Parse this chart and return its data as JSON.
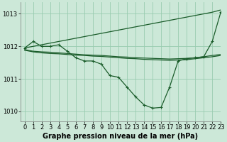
{
  "title": "Graphe pression niveau de la mer (hPa)",
  "background_color": "#cce8d8",
  "grid_color": "#99ccb0",
  "line_color": "#1a5c2a",
  "xlim": [
    -0.5,
    23
  ],
  "ylim": [
    1009.7,
    1013.35
  ],
  "yticks": [
    1010,
    1011,
    1012,
    1013
  ],
  "xticks": [
    0,
    1,
    2,
    3,
    4,
    5,
    6,
    7,
    8,
    9,
    10,
    11,
    12,
    13,
    14,
    15,
    16,
    17,
    18,
    19,
    20,
    21,
    22,
    23
  ],
  "series": [
    {
      "x": [
        0,
        1,
        2,
        3,
        4,
        5,
        6,
        7,
        8,
        9,
        10,
        11,
        12,
        13,
        14,
        15,
        16,
        17,
        18,
        19,
        20,
        21,
        22,
        23
      ],
      "y": [
        1011.95,
        1012.0,
        1012.05,
        1012.1,
        1012.15,
        1012.2,
        1012.25,
        1012.3,
        1012.35,
        1012.4,
        1012.45,
        1012.5,
        1012.55,
        1012.6,
        1012.65,
        1012.7,
        1012.75,
        1012.8,
        1012.85,
        1012.9,
        1012.95,
        1013.0,
        1013.05,
        1013.12
      ],
      "marker": false,
      "linewidth": 0.9
    },
    {
      "x": [
        0,
        1,
        2,
        3,
        4,
        5,
        6,
        7,
        8,
        9,
        10,
        11,
        12,
        13,
        14,
        15,
        16,
        17,
        18,
        19,
        20,
        21,
        22,
        23
      ],
      "y": [
        1011.9,
        1011.85,
        1011.83,
        1011.82,
        1011.8,
        1011.78,
        1011.76,
        1011.74,
        1011.73,
        1011.72,
        1011.7,
        1011.68,
        1011.67,
        1011.65,
        1011.64,
        1011.63,
        1011.62,
        1011.61,
        1011.62,
        1011.63,
        1011.65,
        1011.68,
        1011.72,
        1011.75
      ],
      "marker": false,
      "linewidth": 0.9
    },
    {
      "x": [
        0,
        1,
        2,
        3,
        4,
        5,
        6,
        7,
        8,
        9,
        10,
        11,
        12,
        13,
        14,
        15,
        16,
        17,
        18,
        19,
        20,
        21,
        22,
        23
      ],
      "y": [
        1011.88,
        1011.83,
        1011.8,
        1011.78,
        1011.77,
        1011.75,
        1011.73,
        1011.72,
        1011.7,
        1011.69,
        1011.67,
        1011.65,
        1011.63,
        1011.62,
        1011.6,
        1011.59,
        1011.58,
        1011.57,
        1011.58,
        1011.59,
        1011.62,
        1011.65,
        1011.68,
        1011.72
      ],
      "marker": false,
      "linewidth": 0.9
    },
    {
      "x": [
        0,
        1,
        2,
        3,
        4,
        5,
        6,
        7,
        8,
        9,
        10,
        11,
        12,
        13,
        14,
        15,
        16,
        17,
        18,
        19,
        20,
        21,
        22,
        23
      ],
      "y": [
        1011.95,
        1012.15,
        1012.0,
        1012.0,
        1012.05,
        1011.85,
        1011.65,
        1011.55,
        1011.55,
        1011.45,
        1011.1,
        1011.05,
        1010.75,
        1010.45,
        1010.2,
        1010.1,
        1010.12,
        1010.75,
        1011.55,
        1011.62,
        1011.65,
        1011.68,
        1012.15,
        1013.05
      ],
      "marker": true,
      "linewidth": 0.9
    }
  ],
  "font_size_title": 7.0,
  "font_size_tick": 6.0
}
